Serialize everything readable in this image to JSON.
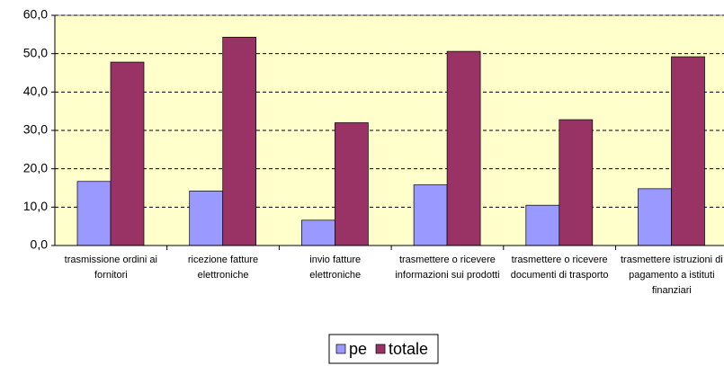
{
  "chart_data": {
    "type": "bar",
    "categories": [
      "trasmissione ordini ai fornitori",
      "ricezione fatture elettroniche",
      "invio fatture elettroniche",
      "trasmettere o ricevere informazioni sui prodotti",
      "trasmettere o ricevere documenti di trasporto",
      "trasmettere istruzioni di pagamento a istituti finanziari"
    ],
    "series": [
      {
        "name": "pe",
        "color": "#9999ff",
        "values": [
          16.7,
          14.2,
          6.6,
          15.8,
          10.5,
          14.8
        ]
      },
      {
        "name": "totale",
        "color": "#993366",
        "values": [
          47.8,
          54.3,
          32.0,
          50.6,
          32.8,
          49.2
        ]
      }
    ],
    "ylim": [
      0,
      60
    ],
    "yticks": [
      {
        "value": 0,
        "label": "0,0"
      },
      {
        "value": 10,
        "label": "10,0"
      },
      {
        "value": 20,
        "label": "20,0"
      },
      {
        "value": 30,
        "label": "30,0"
      },
      {
        "value": 40,
        "label": "40,0"
      },
      {
        "value": 50,
        "label": "50,0"
      },
      {
        "value": 60,
        "label": "60,0"
      }
    ],
    "grid": true,
    "legend": "bottom"
  }
}
